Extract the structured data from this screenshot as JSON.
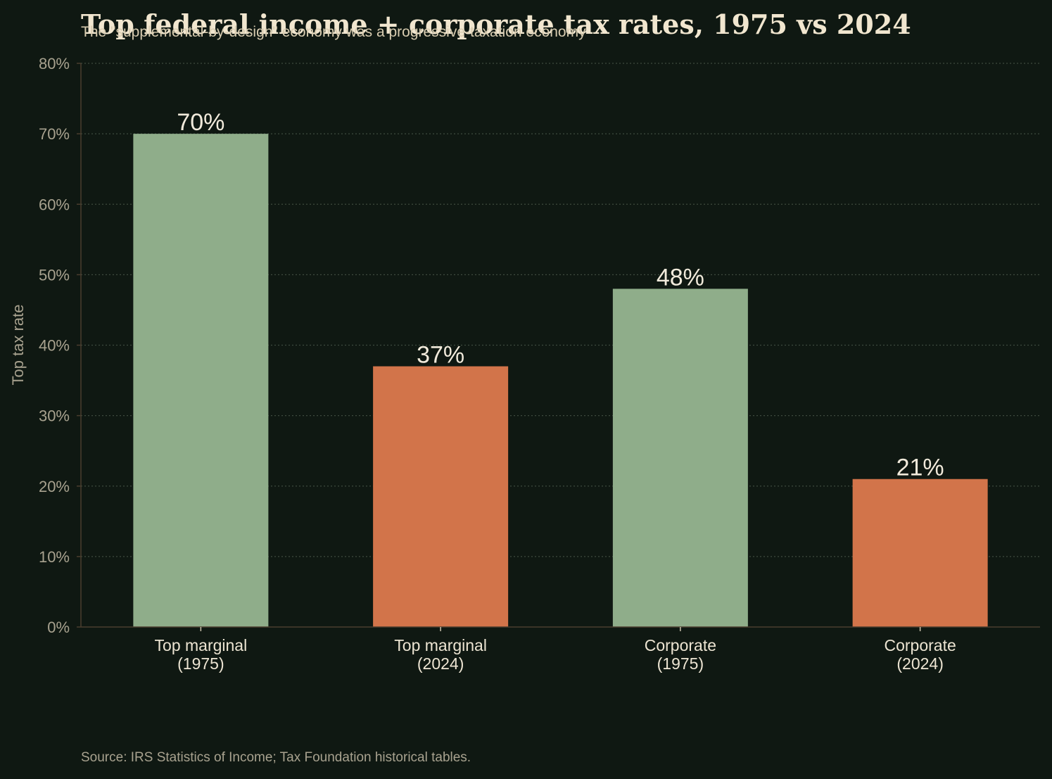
{
  "chart_data": {
    "type": "bar",
    "title": "Top federal income + corporate tax rates, 1975 vs 2024",
    "subtitle": "The \"supplemental-by-design\" economy was a progressive-taxation economy",
    "ylabel": "Top tax rate",
    "xlabel": "",
    "ylim": [
      0,
      80
    ],
    "y_ticks": [
      0,
      10,
      20,
      30,
      40,
      50,
      60,
      70,
      80
    ],
    "y_tick_labels": [
      "0%",
      "10%",
      "20%",
      "30%",
      "40%",
      "50%",
      "60%",
      "70%",
      "80%"
    ],
    "grid": "horizontal dotted",
    "categories": [
      [
        "Top marginal",
        "(1975)"
      ],
      [
        "Top marginal",
        "(2024)"
      ],
      [
        "Corporate",
        "(1975)"
      ],
      [
        "Corporate",
        "(2024)"
      ]
    ],
    "values": [
      70,
      37,
      48,
      21
    ],
    "value_labels": [
      "70%",
      "37%",
      "48%",
      "21%"
    ],
    "bar_colors": [
      "#8fad8a",
      "#d2744a",
      "#8fad8a",
      "#d2744a"
    ],
    "source": "Source: IRS Statistics of Income; Tax Foundation historical tables."
  },
  "colors": {
    "background": "#0f1812",
    "axis": "#4a3d2e",
    "grid": "#3e4a3e",
    "era_1975": "#8fad8a",
    "era_2024": "#d2744a"
  }
}
